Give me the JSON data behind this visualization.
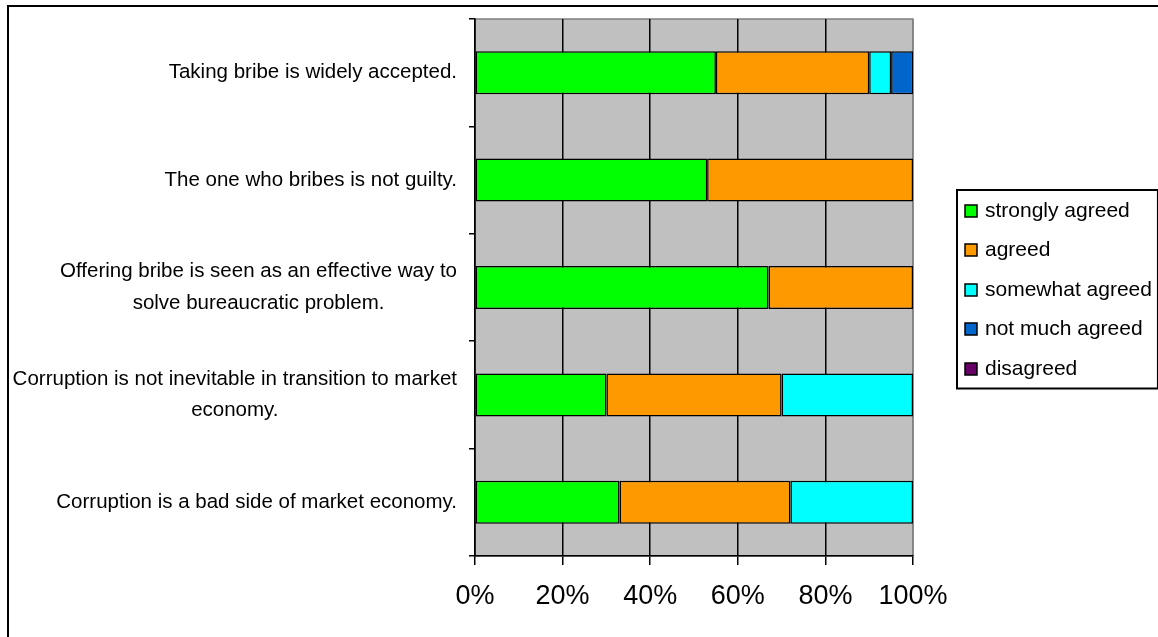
{
  "chart_data": {
    "type": "bar",
    "orientation": "horizontal",
    "stacked": true,
    "categories": [
      "Taking bribe is widely accepted.",
      "The one who bribes is not guilty.",
      "Offering bribe is seen as an effective way to solve bureaucratic problem.",
      "Corruption is not inevitable in transition to market economy.",
      "Corruption is a bad side of market economy."
    ],
    "series": [
      {
        "name": "strongly agreed",
        "color": "#00ff00",
        "values": [
          55,
          53,
          67,
          30,
          33
        ]
      },
      {
        "name": "agreed",
        "color": "#ff9900",
        "values": [
          35,
          47,
          33,
          40,
          39
        ]
      },
      {
        "name": "somewhat agreed",
        "color": "#00ffff",
        "values": [
          5,
          0,
          0,
          30,
          28
        ]
      },
      {
        "name": "not much agreed",
        "color": "#0066cc",
        "values": [
          5,
          0,
          0,
          0,
          0
        ]
      },
      {
        "name": "disagreed",
        "color": "#660066",
        "values": [
          0,
          0,
          0,
          0,
          0
        ]
      }
    ],
    "xlim": [
      0,
      100
    ],
    "xticks": [
      {
        "value": 0,
        "label": "0%"
      },
      {
        "value": 20,
        "label": "20%"
      },
      {
        "value": 40,
        "label": "40%"
      },
      {
        "value": 60,
        "label": "60%"
      },
      {
        "value": 80,
        "label": "80%"
      },
      {
        "value": 100,
        "label": "100%"
      }
    ],
    "grid": "x",
    "legend": "right"
  }
}
